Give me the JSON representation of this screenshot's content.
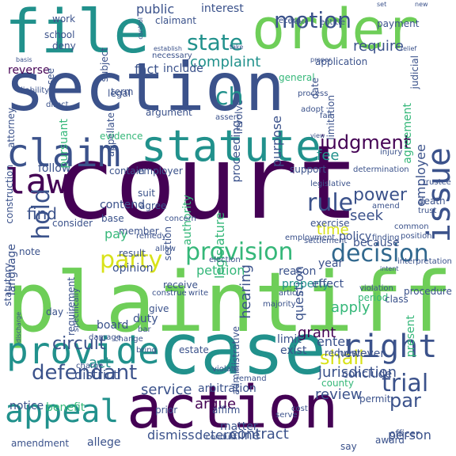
{
  "palette": {
    "purple": "#440154",
    "indigo": "#3b528b",
    "blue": "#31688e",
    "teal": "#21918c",
    "green": "#35b779",
    "lime": "#6ece58",
    "yellow": "#d8e219"
  },
  "words": [
    {
      "text": "court",
      "color": "purple"
    },
    {
      "text": "plaintiff",
      "color": "lime"
    },
    {
      "text": "section",
      "color": "indigo"
    },
    {
      "text": "case",
      "color": "teal"
    },
    {
      "text": "file",
      "color": "teal"
    },
    {
      "text": "order",
      "color": "lime"
    },
    {
      "text": "action",
      "color": "purple"
    },
    {
      "text": "statute",
      "color": "teal"
    },
    {
      "text": "claim",
      "color": "indigo"
    },
    {
      "text": "provide",
      "color": "teal"
    },
    {
      "text": "issue",
      "color": "indigo"
    },
    {
      "text": "right",
      "color": "indigo"
    },
    {
      "text": "appeal",
      "color": "teal"
    },
    {
      "text": "law",
      "color": "purple"
    },
    {
      "text": "provision",
      "color": "green"
    },
    {
      "text": "decision",
      "color": "blue"
    },
    {
      "text": "party",
      "color": "yellow"
    },
    {
      "text": "motion",
      "color": "indigo"
    },
    {
      "text": "state",
      "color": "teal"
    },
    {
      "text": "defendant",
      "color": "indigo"
    },
    {
      "text": "judgment",
      "color": "purple"
    },
    {
      "text": "rule",
      "color": "indigo"
    },
    {
      "text": "trial",
      "color": "indigo"
    },
    {
      "text": "hold",
      "color": "indigo"
    },
    {
      "text": "circuit",
      "color": "indigo"
    },
    {
      "text": "shall",
      "color": "yellow"
    },
    {
      "text": "power",
      "color": "indigo"
    },
    {
      "text": "ch",
      "color": "teal"
    },
    {
      "text": "require",
      "color": "indigo"
    },
    {
      "text": "complaint",
      "color": "teal"
    },
    {
      "text": "employee",
      "color": "indigo"
    },
    {
      "text": "par",
      "color": "indigo"
    },
    {
      "text": "fee",
      "color": "teal"
    },
    {
      "text": "find",
      "color": "indigo"
    },
    {
      "text": "seek",
      "color": "indigo"
    },
    {
      "text": "time",
      "color": "yellow"
    },
    {
      "text": "hearing",
      "color": "indigo"
    },
    {
      "text": "question",
      "color": "indigo"
    },
    {
      "text": "service",
      "color": "indigo"
    },
    {
      "text": "jurisdiction",
      "color": "indigo"
    },
    {
      "text": "review",
      "color": "indigo"
    },
    {
      "text": "contract",
      "color": "indigo"
    },
    {
      "text": "pay",
      "color": "green"
    },
    {
      "text": "act",
      "color": "teal"
    },
    {
      "text": "district",
      "color": "indigo"
    },
    {
      "text": "petition",
      "color": "green"
    },
    {
      "text": "apply",
      "color": "green"
    },
    {
      "text": "enter",
      "color": "indigo"
    },
    {
      "text": "grant",
      "color": "purple"
    },
    {
      "text": "argue",
      "color": "purple"
    },
    {
      "text": "determine",
      "color": "indigo"
    },
    {
      "text": "dismiss",
      "color": "indigo"
    },
    {
      "text": "person",
      "color": "indigo"
    },
    {
      "text": "public",
      "color": "indigo"
    },
    {
      "text": "interest",
      "color": "indigo"
    },
    {
      "text": "fact",
      "color": "indigo"
    },
    {
      "text": "include",
      "color": "indigo"
    },
    {
      "text": "term",
      "color": "indigo"
    },
    {
      "text": "work",
      "color": "indigo"
    },
    {
      "text": "deny",
      "color": "indigo"
    },
    {
      "text": "attorney",
      "color": "indigo"
    },
    {
      "text": "reverse",
      "color": "purple"
    },
    {
      "text": "subject",
      "color": "indigo"
    },
    {
      "text": "record",
      "color": "indigo"
    },
    {
      "text": "entitle",
      "color": "indigo"
    },
    {
      "text": "application",
      "color": "indigo"
    },
    {
      "text": "general",
      "color": "green"
    },
    {
      "text": "purpose",
      "color": "indigo"
    },
    {
      "text": "proceeding",
      "color": "indigo"
    },
    {
      "text": "authority",
      "color": "green"
    },
    {
      "text": "legislature",
      "color": "green"
    },
    {
      "text": "agreement",
      "color": "green"
    },
    {
      "text": "policy",
      "color": "indigo"
    },
    {
      "text": "because",
      "color": "indigo"
    },
    {
      "text": "year",
      "color": "indigo"
    },
    {
      "text": "reason",
      "color": "indigo"
    },
    {
      "text": "property",
      "color": "teal"
    },
    {
      "text": "effect",
      "color": "indigo"
    },
    {
      "text": "opinion",
      "color": "indigo"
    },
    {
      "text": "language",
      "color": "indigo"
    },
    {
      "text": "statutory",
      "color": "indigo"
    },
    {
      "text": "follow",
      "color": "indigo"
    },
    {
      "text": "consider",
      "color": "indigo"
    },
    {
      "text": "contend",
      "color": "indigo"
    },
    {
      "text": "agree",
      "color": "indigo"
    },
    {
      "text": "suit",
      "color": "indigo"
    },
    {
      "text": "base",
      "color": "indigo"
    },
    {
      "text": "member",
      "color": "indigo"
    },
    {
      "text": "board",
      "color": "indigo"
    },
    {
      "text": "duty",
      "color": "indigo"
    },
    {
      "text": "receive",
      "color": "indigo"
    },
    {
      "text": "give",
      "color": "indigo"
    },
    {
      "text": "day",
      "color": "indigo"
    },
    {
      "text": "notice",
      "color": "indigo"
    },
    {
      "text": "benefit",
      "color": "green"
    },
    {
      "text": "arbitration",
      "color": "indigo"
    },
    {
      "text": "limit",
      "color": "indigo"
    },
    {
      "text": "exist",
      "color": "indigo"
    },
    {
      "text": "request",
      "color": "indigo"
    },
    {
      "text": "present",
      "color": "green"
    },
    {
      "text": "conclude",
      "color": "indigo"
    },
    {
      "text": "however",
      "color": "indigo"
    },
    {
      "text": "matter",
      "color": "indigo"
    },
    {
      "text": "affirm",
      "color": "indigo"
    },
    {
      "text": "prior",
      "color": "indigo"
    },
    {
      "text": "allege",
      "color": "indigo"
    },
    {
      "text": "amendment",
      "color": "indigo"
    },
    {
      "text": "officer",
      "color": "indigo"
    },
    {
      "text": "award",
      "color": "indigo"
    },
    {
      "text": "say",
      "color": "indigo"
    },
    {
      "text": "period",
      "color": "green"
    },
    {
      "text": "exercise",
      "color": "indigo"
    },
    {
      "text": "support",
      "color": "indigo"
    },
    {
      "text": "employer",
      "color": "indigo"
    },
    {
      "text": "contain",
      "color": "indigo"
    },
    {
      "text": "pursuant",
      "color": "green"
    },
    {
      "text": "appellate",
      "color": "indigo"
    },
    {
      "text": "argument",
      "color": "indigo"
    },
    {
      "text": "legal",
      "color": "indigo"
    },
    {
      "text": "construction",
      "color": "indigo"
    },
    {
      "text": "evidence",
      "color": "green"
    },
    {
      "text": "limitation",
      "color": "indigo"
    },
    {
      "text": "involve",
      "color": "indigo"
    },
    {
      "text": "judicial",
      "color": "indigo"
    },
    {
      "text": "payment",
      "color": "indigo"
    },
    {
      "text": "school",
      "color": "indigo"
    },
    {
      "text": "see",
      "color": "indigo"
    },
    {
      "text": "result",
      "color": "indigo"
    },
    {
      "text": "allow",
      "color": "indigo"
    },
    {
      "text": "note",
      "color": "indigo"
    },
    {
      "text": "requirement",
      "color": "indigo"
    },
    {
      "text": "procedure",
      "color": "indigo"
    },
    {
      "text": "administrative",
      "color": "indigo"
    },
    {
      "text": "county",
      "color": "green"
    },
    {
      "text": "estate",
      "color": "indigo"
    },
    {
      "text": "permit",
      "color": "indigo"
    },
    {
      "text": "majority",
      "color": "indigo"
    },
    {
      "text": "death",
      "color": "indigo"
    },
    {
      "text": "trust",
      "color": "indigo"
    },
    {
      "text": "injury",
      "color": "indigo"
    },
    {
      "text": "amend",
      "color": "indigo"
    },
    {
      "text": "settlement",
      "color": "indigo"
    },
    {
      "text": "class",
      "color": "indigo"
    },
    {
      "text": "interpretation",
      "color": "indigo"
    },
    {
      "text": "adopt",
      "color": "indigo"
    },
    {
      "text": "process",
      "color": "indigo"
    },
    {
      "text": "date",
      "color": "indigo"
    },
    {
      "text": "claimant",
      "color": "indigo"
    },
    {
      "text": "necessary",
      "color": "indigo"
    },
    {
      "text": "create",
      "color": "indigo"
    },
    {
      "text": "control",
      "color": "indigo"
    },
    {
      "text": "relief",
      "color": "indigo"
    },
    {
      "text": "establish",
      "color": "indigo"
    },
    {
      "text": "view",
      "color": "indigo"
    },
    {
      "text": "bar",
      "color": "indigo"
    },
    {
      "text": "write",
      "color": "indigo"
    },
    {
      "text": "direct",
      "color": "indigo"
    },
    {
      "text": "employment",
      "color": "indigo"
    },
    {
      "text": "concern",
      "color": "indigo"
    },
    {
      "text": "remedy",
      "color": "indigo"
    },
    {
      "text": "finding",
      "color": "indigo"
    },
    {
      "text": "position",
      "color": "indigo"
    },
    {
      "text": "charge",
      "color": "indigo"
    },
    {
      "text": "violate",
      "color": "indigo"
    },
    {
      "text": "cost",
      "color": "indigo"
    },
    {
      "text": "serve",
      "color": "indigo"
    },
    {
      "text": "bring",
      "color": "indigo"
    },
    {
      "text": "change",
      "color": "indigo"
    },
    {
      "text": "damage",
      "color": "indigo"
    },
    {
      "text": "construe",
      "color": "indigo"
    },
    {
      "text": "specifically",
      "color": "indigo"
    },
    {
      "text": "common",
      "color": "indigo"
    },
    {
      "text": "violation",
      "color": "indigo"
    },
    {
      "text": "determination",
      "color": "indigo"
    },
    {
      "text": "liability",
      "color": "indigo"
    },
    {
      "text": "article",
      "color": "indigo"
    },
    {
      "text": "assert",
      "color": "indigo"
    },
    {
      "text": "election",
      "color": "indigo"
    },
    {
      "text": "conduct",
      "color": "indigo"
    },
    {
      "text": "discharge",
      "color": "indigo"
    },
    {
      "text": "remand",
      "color": "indigo"
    },
    {
      "text": "legislative",
      "color": "indigo"
    },
    {
      "text": "trustee",
      "color": "indigo"
    },
    {
      "text": "basis",
      "color": "indigo"
    },
    {
      "text": "take",
      "color": "indigo"
    },
    {
      "text": "intent",
      "color": "indigo"
    },
    {
      "text": "fail",
      "color": "indigo"
    },
    {
      "text": "proper",
      "color": "indigo"
    },
    {
      "text": "new",
      "color": "indigo"
    },
    {
      "text": "set",
      "color": "indigo"
    },
    {
      "text": "section",
      "color": "indigo"
    }
  ]
}
